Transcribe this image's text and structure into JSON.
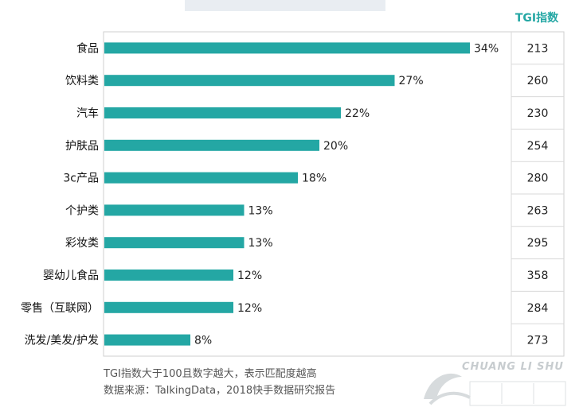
{
  "header": {
    "tgi_title": "TGI指数"
  },
  "chart_data": {
    "type": "bar",
    "orientation": "horizontal",
    "categories": [
      "食品",
      "饮料类",
      "汽车",
      "护肤品",
      "3c产品",
      "个护类",
      "彩妆类",
      "婴幼儿食品",
      "零售（互联网）",
      "洗发/美发/护发"
    ],
    "values": [
      34,
      27,
      22,
      20,
      18,
      13,
      13,
      12,
      12,
      8
    ],
    "value_labels": [
      "34%",
      "27%",
      "22%",
      "20%",
      "18%",
      "13%",
      "13%",
      "12%",
      "12%",
      "8%"
    ],
    "tgi": [
      "213",
      "260",
      "230",
      "254",
      "280",
      "263",
      "295",
      "358",
      "284",
      "273"
    ],
    "xlim": [
      0,
      40
    ],
    "grid": false,
    "bar_color": "#24a7a4"
  },
  "notes": {
    "line1": "TGI指数大于100且数字越大，表示匹配度越高",
    "line2": "数据来源：TalkingData，2018快手数据研究报告"
  },
  "watermark": {
    "text": "CHUANG LI SHU",
    "logo": "chuanglishu-logo-icon"
  }
}
